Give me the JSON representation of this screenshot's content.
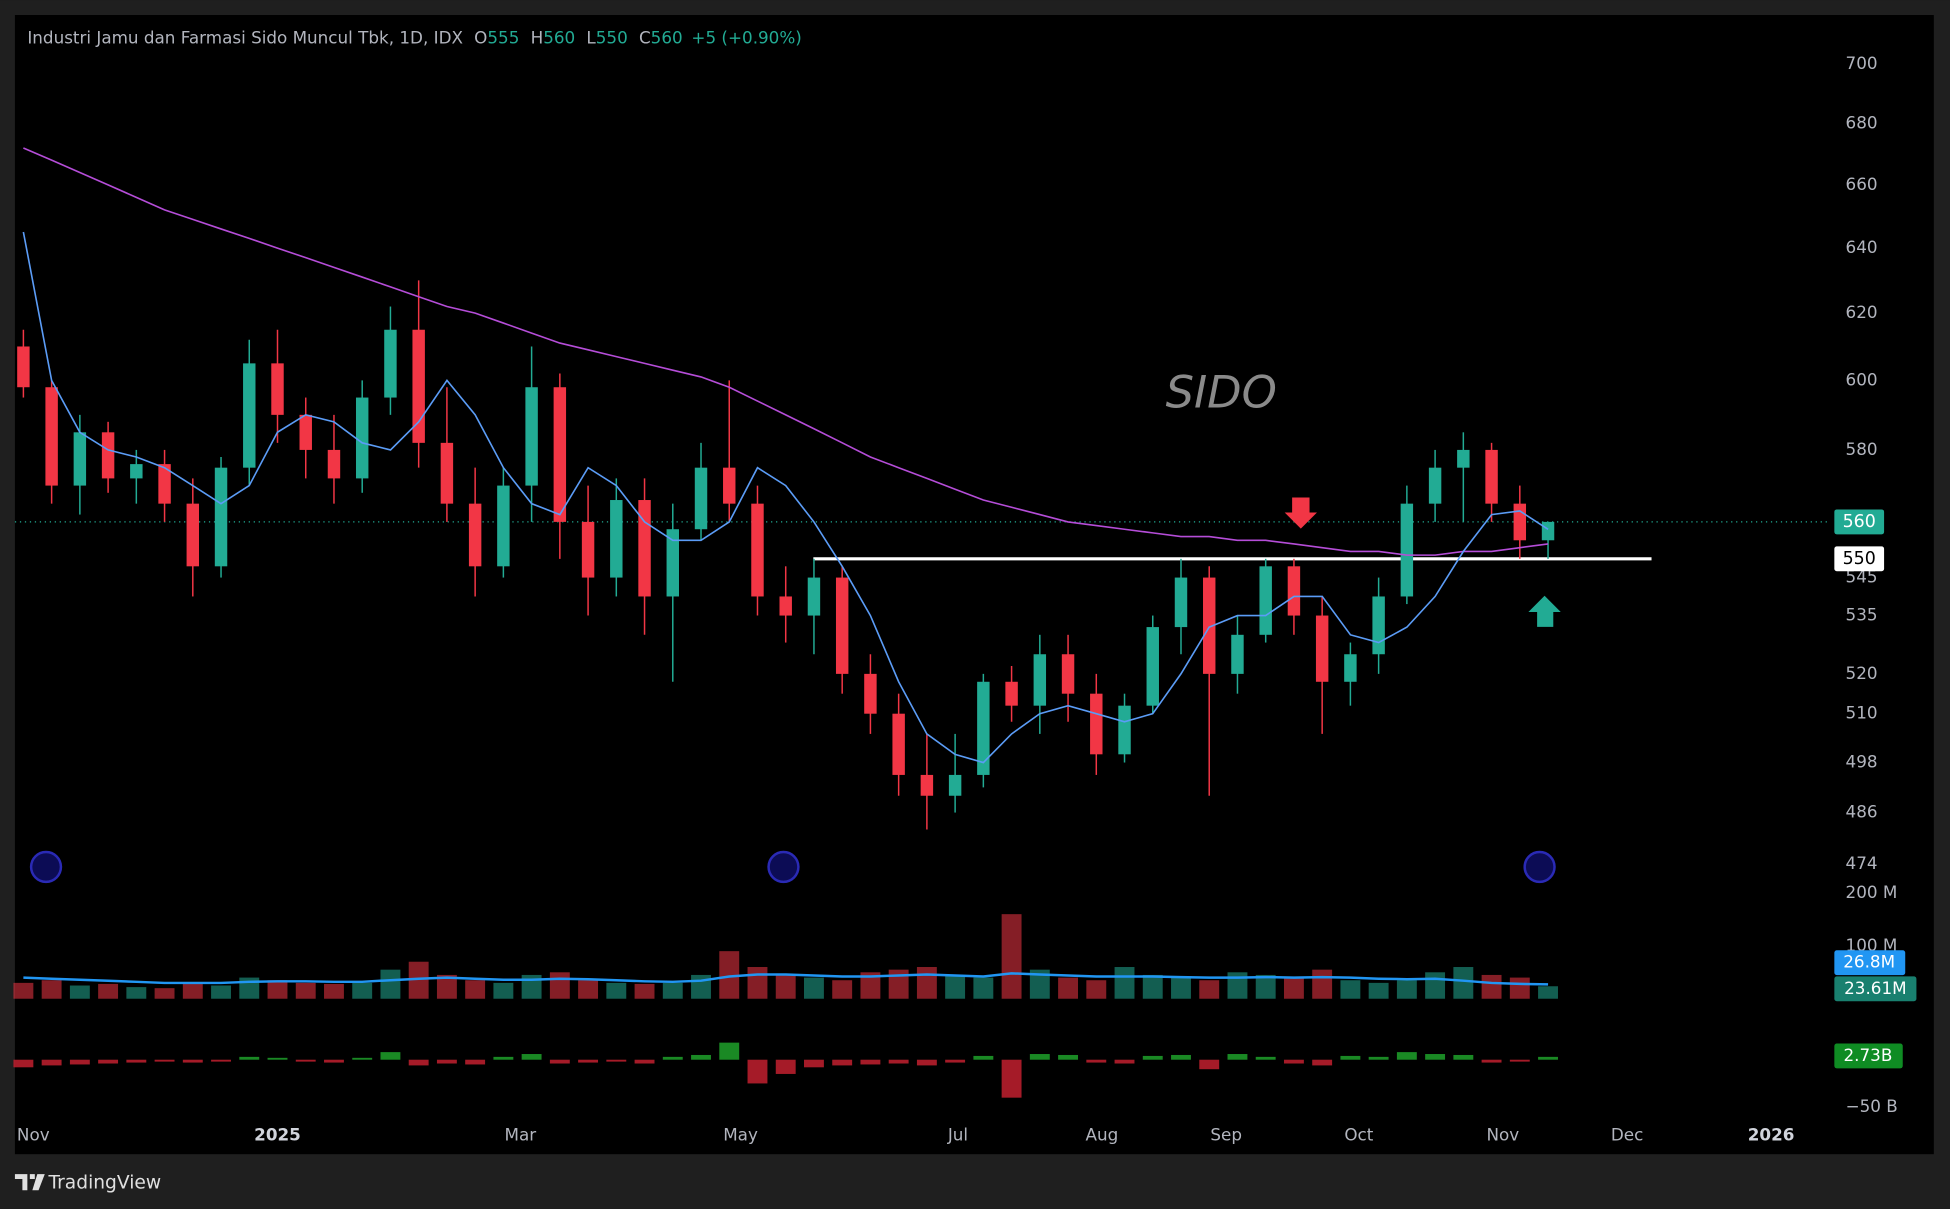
{
  "chart_data": {
    "type": "candlestick",
    "title": "Industri Jamu dan Farmasi Sido Muncul Tbk, 1D, IDX",
    "ohlc": [
      {
        "label": "O",
        "value": 555
      },
      {
        "label": "H",
        "value": 560
      },
      {
        "label": "L",
        "value": 550
      },
      {
        "label": "C",
        "value": 560
      }
    ],
    "change": "+5 (+0.90%)",
    "symbol": "SIDO",
    "brand": "TradingView",
    "up_color": "#22ab94",
    "down_color": "#f23645",
    "log_scale": true,
    "xlim": [
      -0.3,
      63.7
    ],
    "xticks": [
      {
        "value": 0.35,
        "label": "Nov"
      },
      {
        "value": 9,
        "label": "2025"
      },
      {
        "value": 17.6,
        "label": "Mar"
      },
      {
        "value": 25.4,
        "label": "May"
      },
      {
        "value": 33.1,
        "label": "Jul"
      },
      {
        "value": 38.2,
        "label": "Aug"
      },
      {
        "value": 42.6,
        "label": "Sep"
      },
      {
        "value": 47.3,
        "label": "Oct"
      },
      {
        "value": 52.4,
        "label": "Nov"
      },
      {
        "value": 56.8,
        "label": "Dec"
      },
      {
        "value": 61.9,
        "label": "2026"
      }
    ],
    "ylim": [
      471,
      717
    ],
    "yticks": [
      700,
      680,
      660,
      640,
      620,
      600,
      580,
      545,
      535,
      520,
      510,
      498,
      486,
      474
    ],
    "open": [
      610,
      598,
      570,
      585,
      572,
      576,
      565,
      548,
      575,
      605,
      590,
      580,
      572,
      595,
      615,
      582,
      565,
      548,
      570,
      598,
      560,
      545,
      566,
      540,
      558,
      575,
      565,
      540,
      535,
      545,
      520,
      510,
      495,
      490,
      495,
      518,
      512,
      525,
      515,
      500,
      512,
      532,
      545,
      520,
      530,
      548,
      535,
      518,
      525,
      540,
      565,
      575,
      580,
      565,
      555
    ],
    "high": [
      615,
      600,
      590,
      588,
      580,
      580,
      572,
      578,
      612,
      615,
      595,
      590,
      600,
      622,
      630,
      598,
      575,
      575,
      610,
      602,
      570,
      572,
      572,
      565,
      582,
      600,
      570,
      548,
      550,
      548,
      525,
      515,
      505,
      505,
      520,
      522,
      530,
      530,
      520,
      515,
      535,
      550,
      548,
      535,
      550,
      550,
      540,
      528,
      545,
      570,
      580,
      585,
      582,
      570,
      560
    ],
    "low": [
      595,
      565,
      562,
      568,
      565,
      560,
      540,
      545,
      570,
      582,
      572,
      565,
      568,
      590,
      575,
      560,
      540,
      545,
      560,
      550,
      535,
      540,
      530,
      518,
      555,
      560,
      535,
      528,
      525,
      515,
      505,
      490,
      482,
      486,
      492,
      508,
      505,
      508,
      495,
      498,
      510,
      525,
      490,
      515,
      528,
      530,
      505,
      512,
      520,
      538,
      560,
      560,
      560,
      550,
      550
    ],
    "close": [
      598,
      570,
      585,
      572,
      576,
      565,
      548,
      575,
      605,
      590,
      580,
      572,
      595,
      615,
      582,
      565,
      548,
      570,
      598,
      560,
      545,
      566,
      540,
      558,
      575,
      565,
      540,
      535,
      545,
      520,
      510,
      495,
      490,
      495,
      518,
      512,
      525,
      515,
      500,
      512,
      532,
      545,
      520,
      530,
      548,
      535,
      518,
      525,
      540,
      565,
      575,
      580,
      565,
      555,
      560
    ],
    "ma20": {
      "color": "#5b9cf6",
      "values": [
        645,
        600,
        585,
        580,
        578,
        575,
        570,
        565,
        570,
        585,
        590,
        588,
        582,
        580,
        588,
        600,
        590,
        575,
        565,
        562,
        575,
        570,
        560,
        555,
        555,
        560,
        575,
        570,
        560,
        548,
        535,
        518,
        505,
        500,
        498,
        505,
        510,
        512,
        510,
        508,
        510,
        520,
        532,
        535,
        535,
        540,
        540,
        530,
        528,
        532,
        540,
        552,
        562,
        563,
        558
      ]
    },
    "ma200": {
      "color": "#b54dd8",
      "values": [
        672,
        668,
        664,
        660,
        656,
        652,
        649,
        646,
        643,
        640,
        637,
        634,
        631,
        628,
        625,
        622,
        620,
        617,
        614,
        611,
        609,
        607,
        605,
        603,
        601,
        598,
        594,
        590,
        586,
        582,
        578,
        575,
        572,
        569,
        566,
        564,
        562,
        560,
        559,
        558,
        557,
        556,
        556,
        555,
        555,
        554,
        553,
        552,
        552,
        551,
        551,
        552,
        552,
        553,
        554
      ]
    },
    "last_price": {
      "value": 560,
      "color": "#22ab94"
    },
    "level": {
      "value": 550,
      "color": "#ffffff"
    },
    "volume": {
      "ylim": [
        0,
        220
      ],
      "yticks": [
        {
          "value": 200,
          "label": "200 M"
        },
        {
          "value": 100,
          "label": "100 M"
        }
      ],
      "values": [
        30,
        35,
        25,
        28,
        22,
        20,
        30,
        25,
        40,
        35,
        30,
        28,
        30,
        55,
        70,
        45,
        35,
        30,
        45,
        50,
        35,
        30,
        28,
        30,
        45,
        90,
        60,
        45,
        40,
        35,
        50,
        55,
        60,
        45,
        40,
        160,
        55,
        40,
        35,
        60,
        45,
        40,
        35,
        50,
        45,
        40,
        55,
        35,
        30,
        35,
        50,
        60,
        45,
        40,
        23.61
      ],
      "ma": {
        "color": "#2196f3",
        "values": [
          40,
          38,
          36,
          34,
          32,
          30,
          30,
          30,
          32,
          33,
          33,
          32,
          32,
          35,
          38,
          40,
          38,
          36,
          36,
          38,
          37,
          35,
          33,
          32,
          34,
          42,
          46,
          46,
          44,
          42,
          42,
          44,
          46,
          44,
          42,
          48,
          46,
          44,
          42,
          42,
          42,
          41,
          40,
          40,
          41,
          40,
          41,
          40,
          38,
          37,
          38,
          34,
          30,
          28,
          27
        ]
      },
      "ma_label": "26.8M",
      "last_label": "23.61M"
    },
    "delta": {
      "ylim": [
        -55,
        42
      ],
      "yticks": [
        {
          "value": -50,
          "label": "−50 B"
        }
      ],
      "values": [
        -8,
        -6,
        -5,
        -4,
        -3,
        -2,
        -3,
        -2,
        3,
        2,
        -2,
        -3,
        2,
        8,
        -6,
        -4,
        -5,
        3,
        6,
        -4,
        -3,
        -2,
        -4,
        3,
        5,
        18,
        -25,
        -15,
        -8,
        -6,
        -5,
        -4,
        -6,
        -3,
        4,
        -40,
        6,
        5,
        -3,
        -4,
        4,
        5,
        -10,
        6,
        3,
        -4,
        -6,
        4,
        3,
        8,
        6,
        5,
        -3,
        -2,
        3
      ],
      "last_label": "2.73B"
    }
  }
}
